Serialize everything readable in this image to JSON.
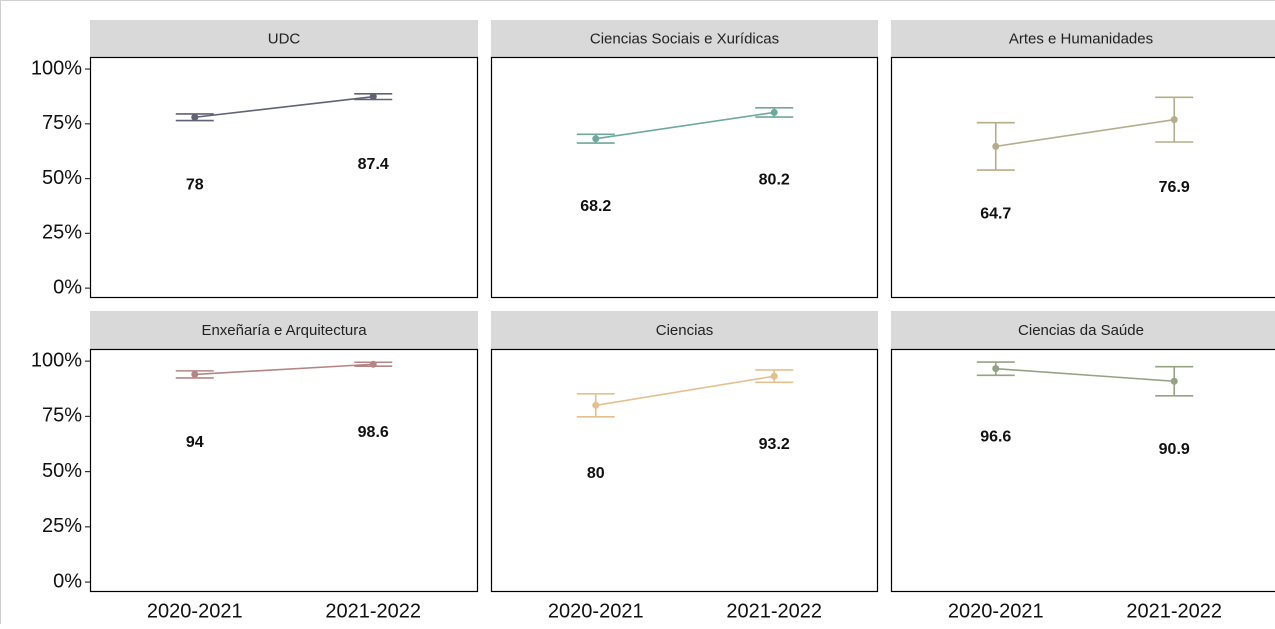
{
  "chart_data": {
    "type": "line",
    "categories": [
      "2020-2021",
      "2021-2022"
    ],
    "ylim": [
      -4.5,
      105.5
    ],
    "yticks": [
      {
        "value": 0,
        "label": "0%"
      },
      {
        "value": 25,
        "label": "25%"
      },
      {
        "value": 50,
        "label": "50%"
      },
      {
        "value": 75,
        "label": "75%"
      },
      {
        "value": 100,
        "label": "100%"
      }
    ],
    "facets": [
      {
        "title": "UDC",
        "color": "#5f6376",
        "values": [
          78,
          87.4
        ],
        "errors": [
          1.5,
          1.3
        ]
      },
      {
        "title": "Ciencias Sociais e Xurídicas",
        "color": "#6fa89e",
        "values": [
          68.2,
          80.2
        ],
        "errors": [
          2,
          2.1
        ]
      },
      {
        "title": "Artes e Humanidades",
        "color": "#b5ad8a",
        "values": [
          64.7,
          76.9
        ],
        "errors": [
          10.8,
          10.2
        ]
      },
      {
        "title": "Enxeñaría e Arquitectura",
        "color": "#b58585",
        "values": [
          94,
          98.6
        ],
        "errors": [
          1.6,
          0.9
        ]
      },
      {
        "title": "Ciencias",
        "color": "#e5c08f",
        "values": [
          80,
          93.2
        ],
        "errors": [
          5.2,
          2.8
        ]
      },
      {
        "title": "Ciencias da Saúde",
        "color": "#93a383",
        "values": [
          96.6,
          90.9
        ],
        "errors": [
          3,
          6.6
        ]
      }
    ]
  }
}
